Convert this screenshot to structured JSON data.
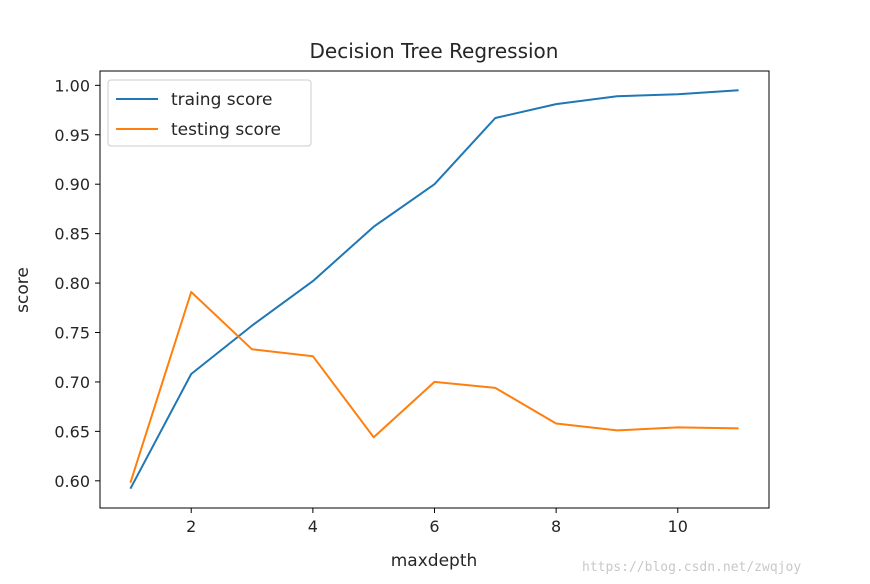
{
  "chart_data": {
    "type": "line",
    "title": "Decision Tree Regression",
    "xlabel": "maxdepth",
    "ylabel": "score",
    "x": [
      1,
      2,
      3,
      4,
      5,
      6,
      7,
      8,
      9,
      10,
      11
    ],
    "series": [
      {
        "name": "traing score",
        "color": "#1f77b4",
        "values": [
          0.592,
          0.708,
          0.757,
          0.802,
          0.857,
          0.9,
          0.967,
          0.981,
          0.989,
          0.991,
          0.995
        ]
      },
      {
        "name": "testing score",
        "color": "#ff7f0e",
        "values": [
          0.598,
          0.791,
          0.733,
          0.726,
          0.644,
          0.7,
          0.694,
          0.658,
          0.651,
          0.654,
          0.653
        ]
      }
    ],
    "xlim": [
      0.5,
      11.5
    ],
    "ylim": [
      0.5725,
      1.0145
    ],
    "xticks": [
      2,
      4,
      6,
      8,
      10
    ],
    "xtick_labels": [
      "2",
      "4",
      "6",
      "8",
      "10"
    ],
    "yticks": [
      0.6,
      0.65,
      0.7,
      0.75,
      0.8,
      0.85,
      0.9,
      0.95,
      1.0
    ],
    "ytick_labels": [
      "0.60",
      "0.65",
      "0.70",
      "0.75",
      "0.80",
      "0.85",
      "0.90",
      "0.95",
      "1.00"
    ],
    "grid": false,
    "legend_position": "upper-left"
  },
  "watermark": "https://blog.csdn.net/zwqjoy"
}
